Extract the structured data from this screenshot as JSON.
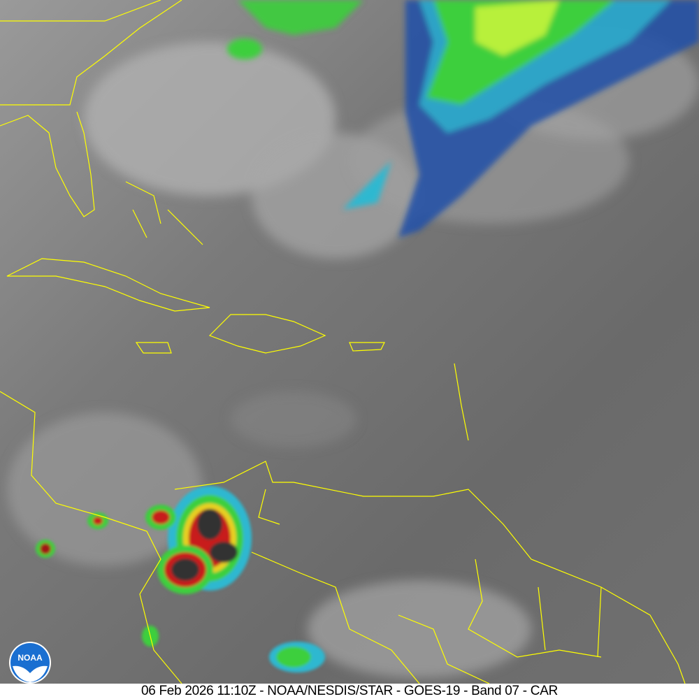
{
  "caption": "06 Feb 2026 11:10Z - NOAA/NESDIS/STAR - GOES-19 - Band 07 - CAR",
  "logo": {
    "text": "NOAA",
    "colors": {
      "blue": "#1a6fd1",
      "white": "#ffffff"
    }
  },
  "colors": {
    "coastline": "#ffff00",
    "background_gray": "#6b6b6b"
  }
}
